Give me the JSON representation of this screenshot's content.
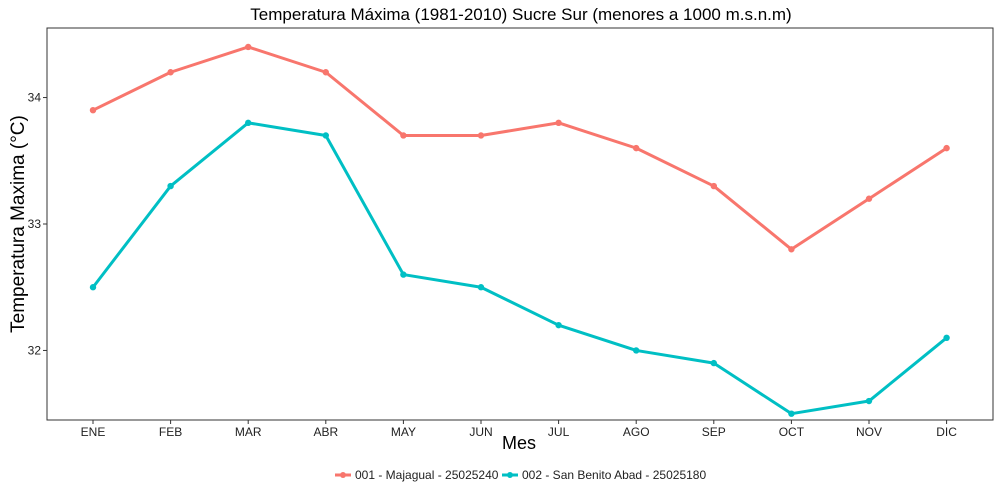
{
  "chart_data": {
    "type": "line",
    "title": "Temperatura Máxima (1981-2010) Sucre Sur (menores a 1000 m.s.n.m)",
    "xlabel": "Mes",
    "ylabel": "Temperatura Maxima (°C)",
    "categories": [
      "ENE",
      "FEB",
      "MAR",
      "ABR",
      "MAY",
      "JUN",
      "JUL",
      "AGO",
      "SEP",
      "OCT",
      "NOV",
      "DIC"
    ],
    "ylim": [
      31.45,
      34.55
    ],
    "yticks": [
      32,
      33,
      34
    ],
    "grid": false,
    "legend_position": "bottom",
    "series": [
      {
        "name": "001 - Majagual - 25025240",
        "color": "#F8766D",
        "values": [
          33.9,
          34.2,
          34.4,
          34.2,
          33.7,
          33.7,
          33.8,
          33.6,
          33.3,
          32.8,
          33.2,
          33.6
        ]
      },
      {
        "name": "002 - San Benito Abad - 25025180",
        "color": "#00BFC4",
        "values": [
          32.5,
          33.3,
          33.8,
          33.7,
          32.6,
          32.5,
          32.2,
          32.0,
          31.9,
          31.5,
          31.6,
          32.1
        ]
      }
    ]
  }
}
